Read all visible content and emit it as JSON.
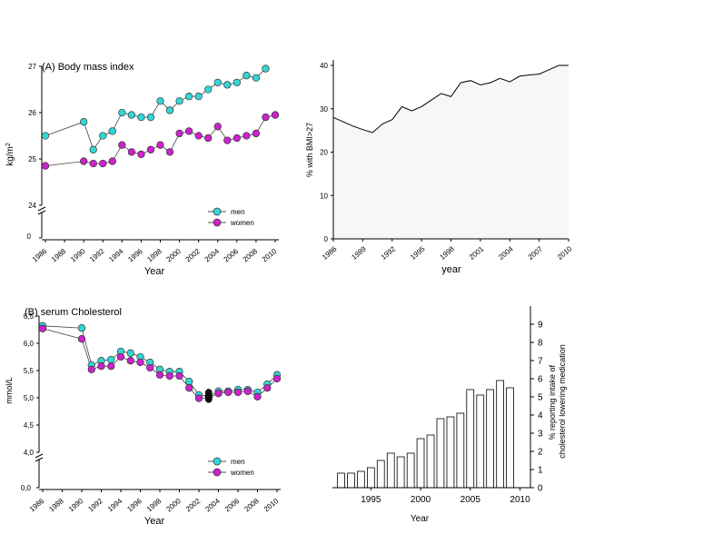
{
  "chart_data": [
    {
      "id": "bmi",
      "type": "line",
      "title": "(A) Body mass index",
      "xlabel": "Year",
      "ylabel": "kg/m2",
      "ylabel_base": "kg/m",
      "ylabel_sup": "2",
      "xlim": [
        1986,
        2010
      ],
      "ylim": [
        24,
        27
      ],
      "broken_axis_low_tick": "0",
      "yticks": [
        "24",
        "25",
        "26",
        "27"
      ],
      "xticks": [
        "1986",
        "1988",
        "1990",
        "1992",
        "1994",
        "1996",
        "1998",
        "2000",
        "2002",
        "2004",
        "2006",
        "2008",
        "2010"
      ],
      "legend_position": "bottom-right",
      "series": [
        {
          "name": "men",
          "color": "#33d6d6",
          "x": [
            1986,
            1990,
            1991,
            1992,
            1993,
            1994,
            1995,
            1996,
            1997,
            1998,
            1999,
            2000,
            2001,
            2002,
            2003,
            2004,
            2005,
            2006,
            2007,
            2008,
            2009
          ],
          "y": [
            25.5,
            25.8,
            25.2,
            25.5,
            25.6,
            26.0,
            25.95,
            25.9,
            25.9,
            26.25,
            26.05,
            26.25,
            26.35,
            26.35,
            26.5,
            26.65,
            26.6,
            26.65,
            26.8,
            26.75,
            26.95
          ]
        },
        {
          "name": "women",
          "color": "#cc22cc",
          "x": [
            1986,
            1990,
            1991,
            1992,
            1993,
            1994,
            1995,
            1996,
            1997,
            1998,
            1999,
            2000,
            2001,
            2002,
            2003,
            2004,
            2005,
            2006,
            2007,
            2008,
            2009,
            2010
          ],
          "y": [
            24.85,
            24.95,
            24.9,
            24.9,
            24.95,
            25.3,
            25.15,
            25.1,
            25.2,
            25.3,
            25.15,
            25.55,
            25.6,
            25.5,
            25.45,
            25.7,
            25.4,
            25.45,
            25.5,
            25.55,
            25.9,
            25.95
          ]
        }
      ]
    },
    {
      "id": "bmi27",
      "type": "area",
      "title": "",
      "xlabel": "year",
      "ylabel": "% with BMI>27",
      "xlim": [
        1986,
        2010
      ],
      "ylim": [
        0,
        40
      ],
      "yticks": [
        "0",
        "10",
        "20",
        "30",
        "40"
      ],
      "xticks": [
        "1986",
        "1989",
        "1992",
        "1995",
        "1998",
        "2001",
        "2004",
        "2007",
        "2010"
      ],
      "series": [
        {
          "name": "",
          "color": "#000000",
          "fill": "#f7f7f7",
          "x": [
            1986,
            1987,
            1988,
            1989,
            1990,
            1991,
            1992,
            1993,
            1994,
            1995,
            1996,
            1997,
            1998,
            1999,
            2000,
            2001,
            2002,
            2003,
            2004,
            2005,
            2006,
            2007,
            2008,
            2009,
            2010
          ],
          "y": [
            28.0,
            27.0,
            26.0,
            25.2,
            24.5,
            26.5,
            27.5,
            30.5,
            29.5,
            30.5,
            32.0,
            33.5,
            32.8,
            36.0,
            36.5,
            35.5,
            36.0,
            37.0,
            36.2,
            37.5,
            37.8,
            38.0,
            39.0,
            40.0,
            40.0
          ]
        }
      ]
    },
    {
      "id": "chol",
      "type": "line",
      "title": "(B) serum Cholesterol",
      "xlabel": "Year",
      "ylabel": "mmol/L",
      "xlim": [
        1986,
        2010
      ],
      "ylim": [
        4.0,
        6.5
      ],
      "broken_axis_low_tick": "0,0",
      "yticks": [
        "4,0",
        "4,5",
        "5,0",
        "5,5",
        "6,0",
        "6,5"
      ],
      "xticks": [
        "1986",
        "1988",
        "1990",
        "1992",
        "1994",
        "1996",
        "1998",
        "2000",
        "2002",
        "2004",
        "2006",
        "2008",
        "2010"
      ],
      "legend_position": "bottom-right",
      "series": [
        {
          "name": "men",
          "color": "#33d6d6",
          "x": [
            1986,
            1990,
            1991,
            1992,
            1993,
            1994,
            1995,
            1996,
            1997,
            1998,
            1999,
            2000,
            2001,
            2002,
            2003,
            2004,
            2005,
            2006,
            2007,
            2008,
            2009,
            2010
          ],
          "y": [
            6.32,
            6.28,
            5.6,
            5.68,
            5.7,
            5.85,
            5.82,
            5.75,
            5.65,
            5.52,
            5.48,
            5.48,
            5.3,
            5.05,
            5.03,
            5.12,
            5.12,
            5.15,
            5.15,
            5.1,
            5.25,
            5.42
          ]
        },
        {
          "name": "women",
          "color": "#cc22cc",
          "x": [
            1986,
            1990,
            1991,
            1992,
            1993,
            1994,
            1995,
            1996,
            1997,
            1998,
            1999,
            2000,
            2001,
            2002,
            2003,
            2004,
            2005,
            2006,
            2007,
            2008,
            2009,
            2010
          ],
          "y": [
            6.27,
            6.08,
            5.52,
            5.58,
            5.58,
            5.75,
            5.68,
            5.65,
            5.55,
            5.42,
            5.4,
            5.4,
            5.18,
            4.99,
            5.0,
            5.08,
            5.1,
            5.1,
            5.12,
            5.02,
            5.18,
            5.35
          ]
        }
      ],
      "markers_black": {
        "color": "#111111",
        "x": [
          2003,
          2003,
          2003,
          2003
        ],
        "y": [
          4.97,
          5.02,
          5.06,
          5.1
        ]
      }
    },
    {
      "id": "chol_med",
      "type": "bar",
      "title": "",
      "xlabel": "Year",
      "ylabel": "% reporting intake of cholesterol lowering medication",
      "ylabel_line1": "% reporting intake of",
      "ylabel_line2": "cholesterol lowering medication",
      "xlim": [
        1991.5,
        2010.5
      ],
      "ylim": [
        0,
        10
      ],
      "yticks": [
        "0",
        "1",
        "2",
        "3",
        "4",
        "5",
        "6",
        "7",
        "8",
        "9"
      ],
      "xticks": [
        "1995",
        "2000",
        "2005",
        "2010"
      ],
      "categories": [
        "1992",
        "1993",
        "1994",
        "1995",
        "1996",
        "1997",
        "1998",
        "1999",
        "2000",
        "2001",
        "2002",
        "2003",
        "2004",
        "2005",
        "2006",
        "2007",
        "2008",
        "2009"
      ],
      "values": [
        0.8,
        0.8,
        0.9,
        1.1,
        1.5,
        1.9,
        1.7,
        1.9,
        2.7,
        2.9,
        3.8,
        3.9,
        4.1,
        5.4,
        5.1,
        5.4,
        5.9,
        5.5
      ]
    }
  ]
}
